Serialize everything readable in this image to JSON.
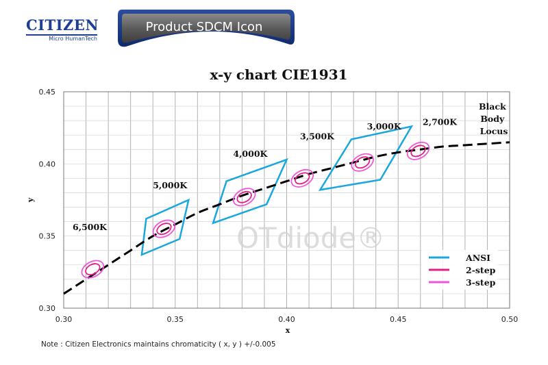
{
  "brand": {
    "logo_text": "CITIZEN",
    "logo_subtext": "Micro HumanTech",
    "banner_title": "Product SDCM Icon",
    "watermark": "OTdiode®"
  },
  "footnote": "Note : Citizen Electronics maintains chromaticity ( x, y ) +/-0.005",
  "colors": {
    "ansi": "#1aa7dd",
    "step2": "#e0218a",
    "step3": "#ee55dd",
    "grid": "#b0b0b0",
    "locus": "#000000",
    "brand_blue": "#1c3f95"
  },
  "chart_data": {
    "type": "scatter",
    "title": "x-y chart  CIE1931",
    "xlabel": "x",
    "ylabel": "y",
    "xlim": [
      0.3,
      0.5
    ],
    "ylim": [
      0.3,
      0.45
    ],
    "xticks": [
      "0.30",
      "0.35",
      "0.40",
      "0.45",
      "0.50"
    ],
    "yticks": [
      "0.30",
      "0.35",
      "0.40",
      "0.45"
    ],
    "grid": true,
    "legend_placement": "bottom-right",
    "legend": [
      "ANSI",
      "2-step",
      "3-step"
    ],
    "locus_label": [
      "Black",
      "Body",
      "Locus"
    ],
    "black_body_locus": [
      [
        0.3,
        0.31
      ],
      [
        0.31,
        0.32
      ],
      [
        0.32,
        0.33
      ],
      [
        0.33,
        0.34
      ],
      [
        0.34,
        0.35
      ],
      [
        0.35,
        0.358
      ],
      [
        0.36,
        0.366
      ],
      [
        0.37,
        0.372
      ],
      [
        0.38,
        0.378
      ],
      [
        0.39,
        0.383
      ],
      [
        0.4,
        0.388
      ],
      [
        0.41,
        0.393
      ],
      [
        0.42,
        0.397
      ],
      [
        0.43,
        0.401
      ],
      [
        0.44,
        0.405
      ],
      [
        0.45,
        0.408
      ],
      [
        0.46,
        0.41
      ],
      [
        0.47,
        0.412
      ],
      [
        0.48,
        0.413
      ],
      [
        0.49,
        0.414
      ],
      [
        0.5,
        0.415
      ]
    ],
    "cct_groups": [
      {
        "label": "6,500K",
        "center": [
          0.313,
          0.327
        ],
        "label_at": [
          0.304,
          0.354
        ],
        "ansi": null
      },
      {
        "label": "5,000K",
        "center": [
          0.345,
          0.355
        ],
        "label_at": [
          0.34,
          0.383
        ],
        "ansi": [
          [
            0.337,
            0.362
          ],
          [
            0.356,
            0.375
          ],
          [
            0.352,
            0.348
          ],
          [
            0.335,
            0.337
          ]
        ]
      },
      {
        "label": "4,000K",
        "center": [
          0.381,
          0.377
        ],
        "label_at": [
          0.376,
          0.405
        ],
        "ansi": [
          [
            0.373,
            0.388
          ],
          [
            0.4,
            0.403
          ],
          [
            0.391,
            0.372
          ],
          [
            0.367,
            0.359
          ]
        ]
      },
      {
        "label": "3,500K",
        "center": [
          0.407,
          0.39
        ],
        "label_at": [
          0.406,
          0.417
        ],
        "ansi": null
      },
      {
        "label": "3,000K",
        "center": [
          0.434,
          0.401
        ],
        "label_at": [
          0.436,
          0.424
        ],
        "ansi": [
          [
            0.429,
            0.417
          ],
          [
            0.456,
            0.426
          ],
          [
            0.442,
            0.389
          ],
          [
            0.415,
            0.382
          ]
        ]
      },
      {
        "label": "2,700K",
        "center": [
          0.459,
          0.409
        ],
        "label_at": [
          0.461,
          0.427
        ],
        "ansi": null
      }
    ]
  }
}
